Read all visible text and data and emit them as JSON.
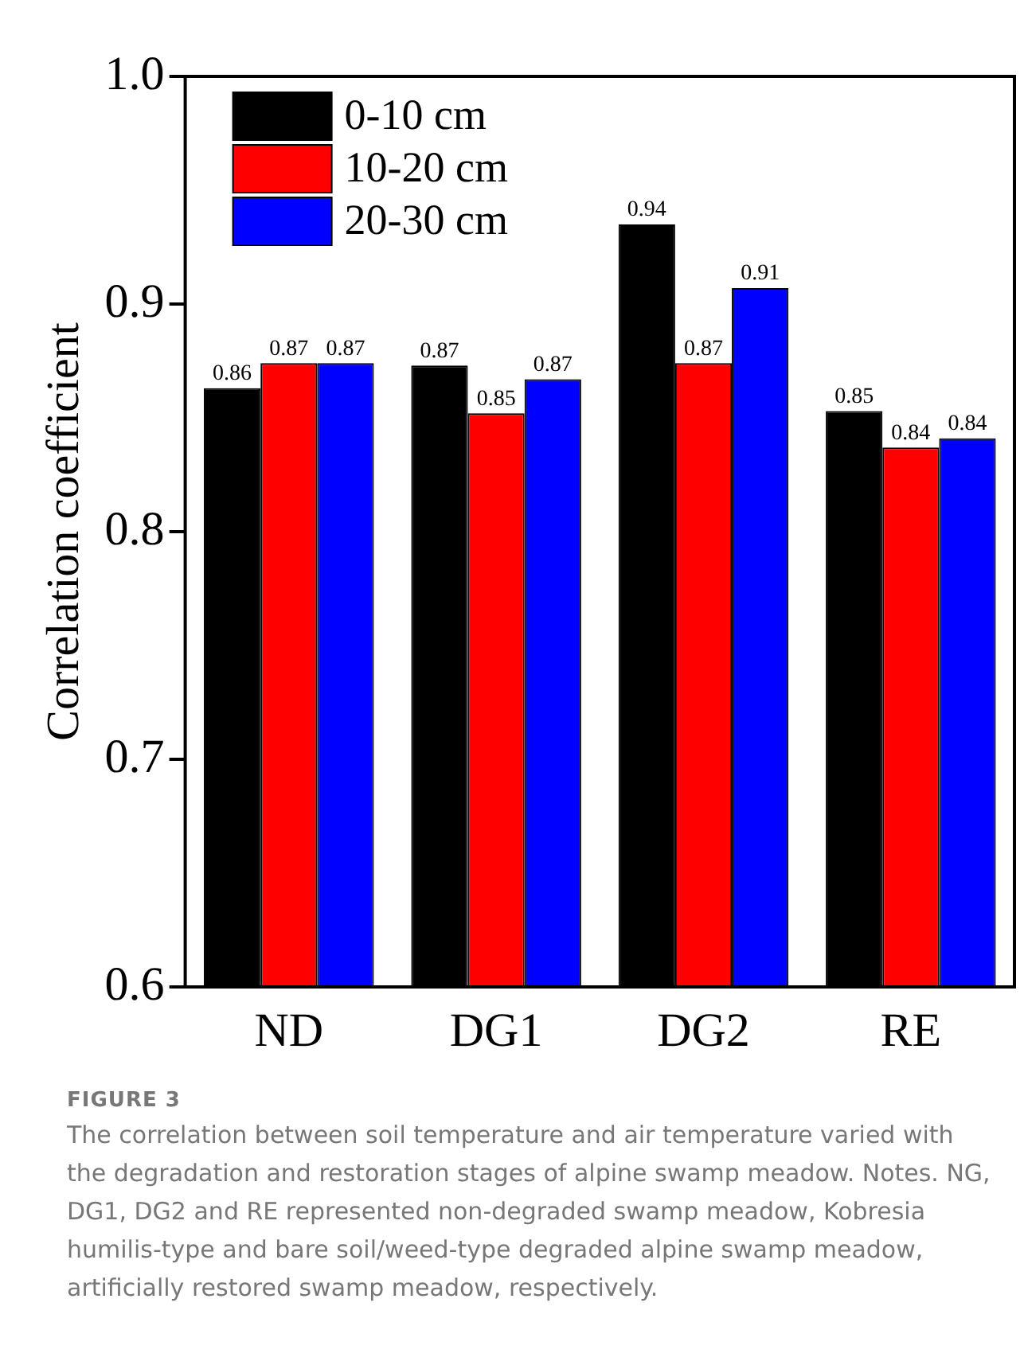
{
  "chart_data": {
    "type": "bar",
    "ylabel": "Correlation coefficient",
    "categories": [
      "ND",
      "DG1",
      "DG2",
      "RE"
    ],
    "series": [
      {
        "name": "0-10 cm",
        "color": "#000000",
        "values": [
          0.863,
          0.873,
          0.935,
          0.853
        ],
        "value_labels": [
          "0.86",
          "0.87",
          "0.94",
          "0.85"
        ]
      },
      {
        "name": "10-20 cm",
        "color": "#ff0000",
        "values": [
          0.874,
          0.852,
          0.874,
          0.837
        ],
        "value_labels": [
          "0.87",
          "0.85",
          "0.87",
          "0.84"
        ]
      },
      {
        "name": "20-30 cm",
        "color": "#0000ff",
        "values": [
          0.874,
          0.867,
          0.907,
          0.841
        ],
        "value_labels": [
          "0.87",
          "0.87",
          "0.91",
          "0.84"
        ]
      }
    ],
    "ylim": [
      0.6,
      1.0
    ],
    "yticks": [
      {
        "value": 0.6,
        "label": "0.6"
      },
      {
        "value": 0.7,
        "label": "0.7"
      },
      {
        "value": 0.8,
        "label": "0.8"
      },
      {
        "value": 0.9,
        "label": "0.9"
      },
      {
        "value": 1.0,
        "label": "1.0"
      }
    ],
    "grid": false,
    "legend": "top left",
    "annotations": [
      "FIGURE 3",
      "The correlation between soil temperature and air temperature varied with the degradation and restoration stages of alpine swamp meadow. Notes. NG, DG1, DG2 and RE represented non-degraded swamp meadow, Kobresia humilis-type and bare soil/weed-type degraded alpine swamp meadow, artificially restored swamp meadow, respectively."
    ]
  }
}
